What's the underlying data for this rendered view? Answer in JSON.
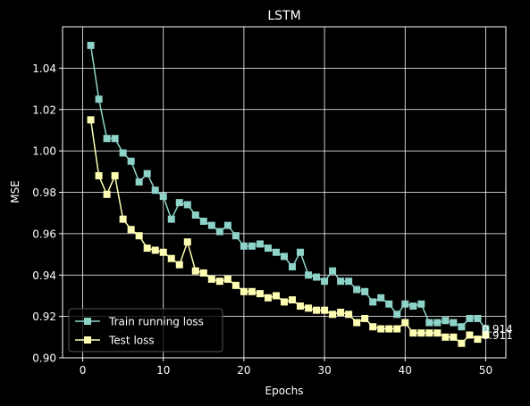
{
  "chart_data": {
    "type": "line",
    "title": "LSTM",
    "xlabel": "Epochs",
    "ylabel": "MSE",
    "xlim": [
      -2.5,
      52.5
    ],
    "ylim": [
      0.9,
      1.06
    ],
    "xticks": [
      0,
      10,
      20,
      30,
      40,
      50
    ],
    "yticks": [
      0.9,
      0.92,
      0.94,
      0.96,
      0.98,
      1.0,
      1.02,
      1.04
    ],
    "grid": true,
    "legend_position": "lower-left",
    "series": [
      {
        "name": "Train running loss",
        "color": "#8dd3c7",
        "marker": "square",
        "x": [
          1,
          2,
          3,
          4,
          5,
          6,
          7,
          8,
          9,
          10,
          11,
          12,
          13,
          14,
          15,
          16,
          17,
          18,
          19,
          20,
          21,
          22,
          23,
          24,
          25,
          26,
          27,
          28,
          29,
          30,
          31,
          32,
          33,
          34,
          35,
          36,
          37,
          38,
          39,
          40,
          41,
          42,
          43,
          44,
          45,
          46,
          47,
          48,
          49,
          50
        ],
        "values": [
          1.051,
          1.025,
          1.006,
          1.006,
          0.999,
          0.995,
          0.985,
          0.989,
          0.981,
          0.978,
          0.967,
          0.975,
          0.974,
          0.969,
          0.966,
          0.964,
          0.961,
          0.964,
          0.959,
          0.954,
          0.954,
          0.955,
          0.953,
          0.951,
          0.949,
          0.944,
          0.951,
          0.94,
          0.939,
          0.937,
          0.942,
          0.937,
          0.937,
          0.933,
          0.932,
          0.927,
          0.929,
          0.926,
          0.921,
          0.926,
          0.925,
          0.926,
          0.917,
          0.917,
          0.918,
          0.917,
          0.915,
          0.919,
          0.919,
          0.914
        ],
        "end_label": "0.914"
      },
      {
        "name": "Test loss",
        "color": "#ffffb3",
        "marker": "square",
        "x": [
          1,
          2,
          3,
          4,
          5,
          6,
          7,
          8,
          9,
          10,
          11,
          12,
          13,
          14,
          15,
          16,
          17,
          18,
          19,
          20,
          21,
          22,
          23,
          24,
          25,
          26,
          27,
          28,
          29,
          30,
          31,
          32,
          33,
          34,
          35,
          36,
          37,
          38,
          39,
          40,
          41,
          42,
          43,
          44,
          45,
          46,
          47,
          48,
          49,
          50
        ],
        "values": [
          1.015,
          0.988,
          0.979,
          0.988,
          0.967,
          0.962,
          0.959,
          0.953,
          0.952,
          0.951,
          0.948,
          0.945,
          0.956,
          0.942,
          0.941,
          0.938,
          0.937,
          0.938,
          0.935,
          0.932,
          0.932,
          0.931,
          0.929,
          0.93,
          0.927,
          0.928,
          0.925,
          0.924,
          0.923,
          0.923,
          0.921,
          0.922,
          0.921,
          0.917,
          0.919,
          0.915,
          0.914,
          0.914,
          0.914,
          0.917,
          0.912,
          0.912,
          0.912,
          0.912,
          0.91,
          0.91,
          0.907,
          0.911,
          0.909,
          0.911
        ],
        "end_label": "0.911"
      }
    ]
  }
}
